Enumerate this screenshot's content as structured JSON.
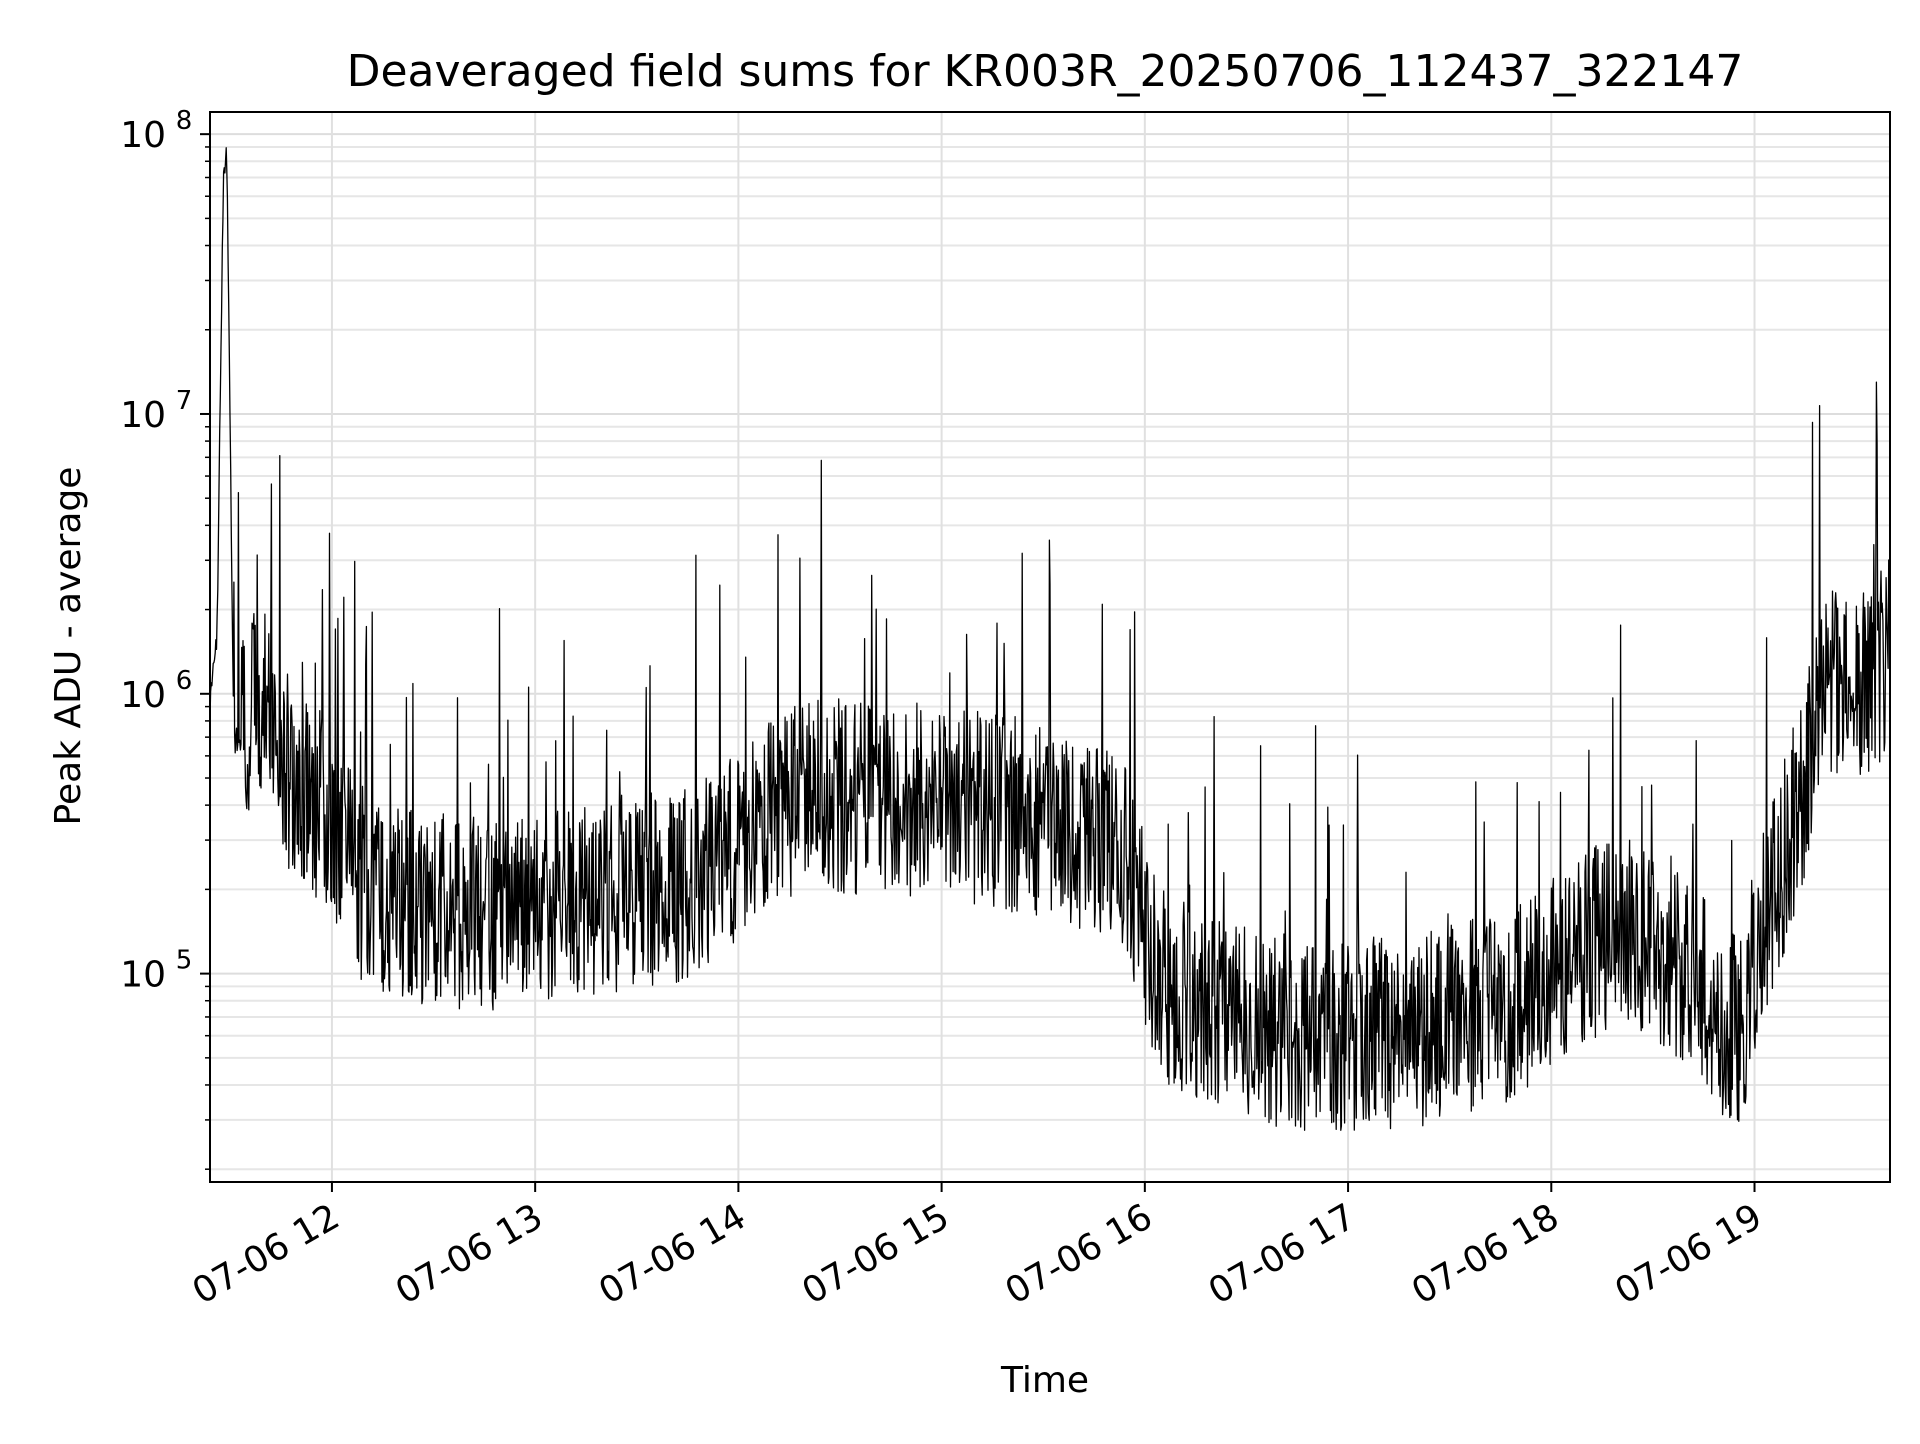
{
  "chart_data": {
    "type": "line",
    "title": "Deaveraged field sums for KR003R_20250706_112437_322147",
    "xlabel": "Time",
    "ylabel": "Peak ADU - average",
    "y_scale": "log",
    "ylim": [
      18000,
      120000000
    ],
    "xlim": [
      "2025-07-06 11:24",
      "2025-07-06 19:40"
    ],
    "x_ticks": [
      "07-06 12",
      "07-06 13",
      "07-06 14",
      "07-06 15",
      "07-06 16",
      "07-06 17",
      "07-06 18",
      "07-06 19"
    ],
    "y_ticks": [
      {
        "base": "10",
        "exp": "5",
        "value": 100000
      },
      {
        "base": "10",
        "exp": "6",
        "value": 1000000
      },
      {
        "base": "10",
        "exp": "7",
        "value": 10000000
      },
      {
        "base": "10",
        "exp": "8",
        "value": 100000000
      }
    ],
    "grid": true,
    "line_color": "#000000",
    "series": [
      {
        "x": [
          "2025-07-06 11:24",
          "2025-07-06 11:26",
          "2025-07-06 11:28",
          "2025-07-06 11:29",
          "2025-07-06 11:31",
          "2025-07-06 11:33",
          "2025-07-06 11:36",
          "2025-07-06 11:38",
          "2025-07-06 11:41",
          "2025-07-06 11:45",
          "2025-07-06 11:48",
          "2025-07-06 11:52",
          "2025-07-06 11:56",
          "2025-07-06 12:00",
          "2025-07-06 12:05",
          "2025-07-06 12:10",
          "2025-07-06 12:20",
          "2025-07-06 12:30",
          "2025-07-06 12:45",
          "2025-07-06 13:00",
          "2025-07-06 13:15",
          "2025-07-06 13:30",
          "2025-07-06 13:45",
          "2025-07-06 14:00",
          "2025-07-06 14:15",
          "2025-07-06 14:30",
          "2025-07-06 14:45",
          "2025-07-06 15:00",
          "2025-07-06 15:15",
          "2025-07-06 15:30",
          "2025-07-06 15:45",
          "2025-07-06 15:55",
          "2025-07-06 16:05",
          "2025-07-06 16:20",
          "2025-07-06 16:35",
          "2025-07-06 16:50",
          "2025-07-06 17:05",
          "2025-07-06 17:20",
          "2025-07-06 17:35",
          "2025-07-06 17:50",
          "2025-07-06 18:05",
          "2025-07-06 18:20",
          "2025-07-06 18:35",
          "2025-07-06 18:50",
          "2025-07-06 18:56",
          "2025-07-06 19:00",
          "2025-07-06 19:05",
          "2025-07-06 19:10",
          "2025-07-06 19:15",
          "2025-07-06 19:20",
          "2025-07-06 19:25",
          "2025-07-06 19:30",
          "2025-07-06 19:35",
          "2025-07-06 19:39"
        ],
        "y": [
          900000,
          1500000,
          75000000,
          82000000,
          700000,
          650000,
          850000,
          900000,
          1000000,
          600000,
          500000,
          450000,
          400000,
          380000,
          250000,
          200000,
          180000,
          170000,
          160000,
          170000,
          180000,
          200000,
          210000,
          280000,
          420000,
          430000,
          420000,
          410000,
          380000,
          360000,
          300000,
          250000,
          90000,
          75000,
          65000,
          60000,
          60000,
          62000,
          70000,
          80000,
          110000,
          150000,
          120000,
          70000,
          60000,
          120000,
          180000,
          300000,
          500000,
          900000,
          1200000,
          1100000,
          1000000,
          1500000
        ]
      }
    ]
  }
}
